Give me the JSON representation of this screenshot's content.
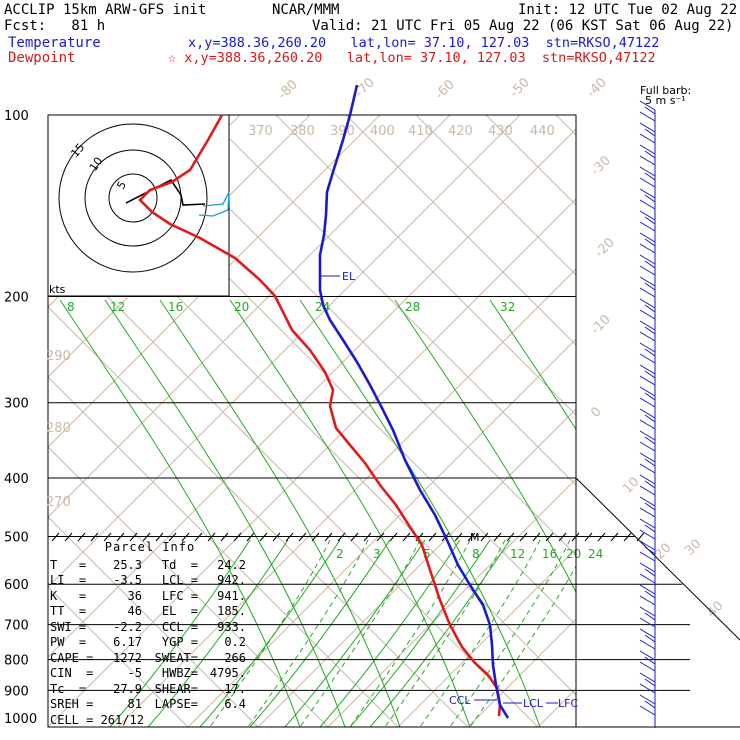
{
  "header": {
    "model": "ACCLIP 15km ARW-GFS init",
    "fcst": "Fcst:   81 h",
    "center": "NCAR/MMM",
    "init": "Init: 12 UTC Tue 02 Aug 22",
    "valid": "Valid: 21 UTC Fri 05 Aug 22 (06 KST Sat 06 Aug 22)",
    "temp_label": "Temperature",
    "temp_info": "x,y=388.36,260.20   lat,lon= 37.10, 127.03  stn=RKSO,47122",
    "dew_label": "Dewpoint",
    "dew_info": "☆ x,y=388.36,260.20   lat,lon= 37.10, 127.03  stn=RKSO,47122"
  },
  "barb_legend": {
    "line1": "Full barb:",
    "line2": "5 m s⁻¹"
  },
  "hodograph": {
    "units": "kts",
    "ring_labels": [
      "5",
      "10",
      "15"
    ]
  },
  "levels_label": {
    "el": "EL",
    "m": "M",
    "ccl": "CCL",
    "lcl": "LCL",
    "lfc": "LFC"
  },
  "parcel_info": {
    "title": "Parcel Info",
    "rows": [
      [
        "T   =",
        "25.3",
        "Td  =",
        "24.2"
      ],
      [
        "LI  =",
        "-3.5",
        "LCL =",
        "942."
      ],
      [
        "K   =",
        "36",
        "LFC =",
        "941."
      ],
      [
        "TT  =",
        "46",
        "EL  =",
        "185."
      ],
      [
        "SWI =",
        "-2.2",
        "CCL =",
        "933."
      ],
      [
        "PW  =",
        "6.17",
        "YGP =",
        "0.2"
      ],
      [
        "CAPE =",
        "1272",
        "SWEAT=",
        "266"
      ],
      [
        "CIN  =",
        "-5",
        "HWBZ=",
        "4795."
      ],
      [
        "Tc  =",
        "27.9",
        "SHEAR=",
        "17."
      ],
      [
        "SREH =",
        "81",
        "LAPSE=",
        "6.4"
      ],
      [
        "CELL = 261/12",
        "",
        "",
        ""
      ]
    ]
  },
  "chart_data": {
    "type": "line",
    "title": "",
    "pressure_levels": [
      "100",
      "200",
      "300",
      "400",
      "500",
      "600",
      "700",
      "800",
      "900",
      "1000"
    ],
    "isotherm_labels": [
      "-80",
      "-70",
      "-60",
      "-50",
      "-40",
      "-30",
      "-20",
      "-10",
      "0",
      "10",
      "20",
      "30",
      "40"
    ],
    "theta_labels": [
      "370",
      "380",
      "390",
      "400",
      "410",
      "420",
      "430",
      "440",
      "290",
      "280",
      "270"
    ],
    "mixing_ratio_labels_upper": [
      "8",
      "12",
      "16",
      "20",
      "24",
      "28",
      "32"
    ],
    "mixing_ratio_labels_lower": [
      "2",
      "3",
      "5",
      "8",
      "12",
      "16",
      "20",
      "24"
    ],
    "series": [
      {
        "name": "Temperature",
        "color": "#1a1acc"
      },
      {
        "name": "Dewpoint",
        "color": "#e01a1a"
      }
    ],
    "colors": {
      "temperature": "#1a1acc",
      "dewpoint": "#e01a1a",
      "isotherm": "#c9b9a6",
      "mixing": "#22aa22"
    }
  }
}
